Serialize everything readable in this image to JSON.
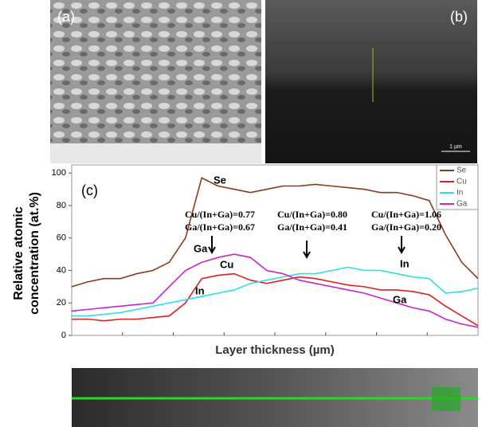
{
  "chart_data": {
    "type": "line",
    "panel_labels": [
      "(a)",
      "(b)",
      "(c)"
    ],
    "scale_bar": "1 µm",
    "xlabel": "Layer thickness (µm)",
    "ylabel": [
      "Relative atomic",
      "concentration (at.%)"
    ],
    "ylim": [
      0,
      105
    ],
    "yticks": [
      0,
      20,
      40,
      60,
      80,
      100
    ],
    "legend": "top-right",
    "series": [
      {
        "name": "Se",
        "color": "#8b3a1a",
        "values": [
          30,
          33,
          35,
          35,
          38,
          40,
          45,
          60,
          97,
          92,
          90,
          88,
          90,
          92,
          92,
          93,
          92,
          91,
          90,
          88,
          88,
          86,
          83,
          62,
          45,
          35
        ]
      },
      {
        "name": "Cu",
        "color": "#e0201c",
        "values": [
          10,
          10,
          9,
          10,
          10,
          11,
          12,
          20,
          35,
          37,
          38,
          34,
          32,
          34,
          36,
          35,
          33,
          31,
          30,
          28,
          28,
          27,
          25,
          18,
          12,
          6
        ]
      },
      {
        "name": "In",
        "color": "#2ee0e0",
        "values": [
          12,
          12,
          13,
          14,
          16,
          18,
          20,
          22,
          24,
          26,
          28,
          32,
          34,
          36,
          38,
          38,
          40,
          42,
          40,
          40,
          38,
          36,
          35,
          26,
          27,
          29
        ]
      },
      {
        "name": "Ga",
        "color": "#cc22cc",
        "values": [
          15,
          16,
          17,
          18,
          19,
          20,
          30,
          40,
          45,
          48,
          50,
          48,
          40,
          38,
          34,
          32,
          30,
          28,
          26,
          23,
          20,
          17,
          15,
          10,
          7,
          5
        ]
      }
    ],
    "annotations": [
      "Se",
      "Ga",
      "Cu",
      "In",
      "In",
      "Ga",
      "Cu/(In+Ga)=0.77",
      "Ga/(In+Ga)=0.67",
      "Cu/(In+Ga)=0.80",
      "Ga/(In+Ga)=0.41",
      "Cu/(In+Ga)=1.06",
      "Ga/(In+Ga)=0.20"
    ]
  }
}
